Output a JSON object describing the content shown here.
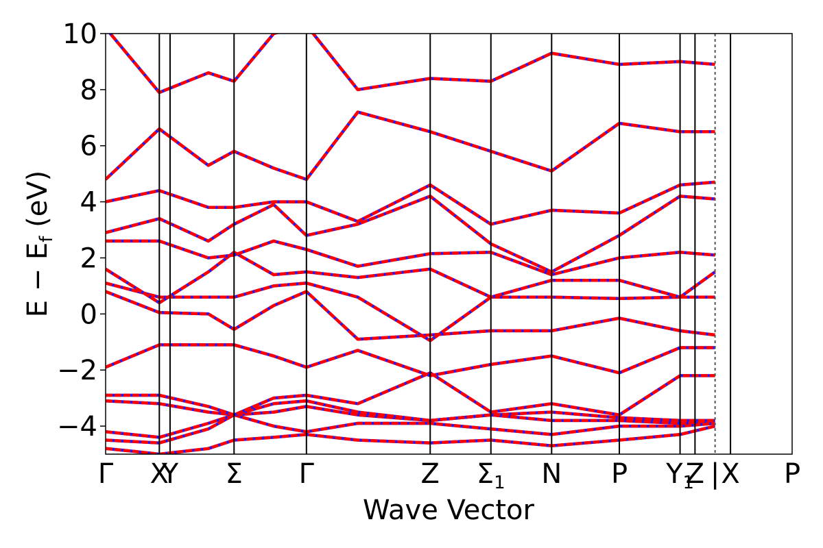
{
  "chart_data": {
    "type": "line",
    "title": "",
    "xlabel": "Wave Vector",
    "ylabel": "E − E",
    "ylabel_sub": "f",
    "ylabel_unit": "(eV)",
    "ylim": [
      -5,
      10
    ],
    "yticks": [
      -4,
      -2,
      0,
      2,
      4,
      6,
      8,
      10
    ],
    "ytick_labels": [
      "−4",
      "−2",
      "0",
      "2",
      "4",
      "6",
      "8",
      "10"
    ],
    "xlim": [
      0,
      13.2
    ],
    "high_symmetry_points": [
      {
        "label": "Γ",
        "sub": "",
        "x": 0.0
      },
      {
        "label": "X",
        "sub": "",
        "x": 1.15
      },
      {
        "label": "Y",
        "sub": "",
        "x": 1.38
      },
      {
        "label": "Σ",
        "sub": "",
        "x": 2.75
      },
      {
        "label": "Γ",
        "sub": "",
        "x": 4.3
      },
      {
        "label": "Z",
        "sub": "",
        "x": 6.95
      },
      {
        "label": "Σ",
        "sub": "1",
        "x": 8.25
      },
      {
        "label": "N",
        "sub": "",
        "x": 9.55
      },
      {
        "label": "P",
        "sub": "",
        "x": 11.0
      },
      {
        "label": "Y",
        "sub": "1",
        "x": 12.3
      },
      {
        "label": "Z",
        "sub": "",
        "x": 12.62
      },
      {
        "label": "|",
        "sub": "",
        "x": 13.05
      },
      {
        "label": "X",
        "sub": "",
        "x": 13.38
      },
      {
        "label": "P",
        "sub": "",
        "x": 14.7
      }
    ],
    "path_break_x": 13.05,
    "grid": false,
    "legend": "none",
    "line_styles": {
      "solid_color": "#ff0000",
      "dashed_color": "#1a1aff"
    },
    "series": [
      {
        "values": [
          [
            0,
            -4.8
          ],
          [
            0.6,
            -4.9
          ],
          [
            1.15,
            -5.0
          ],
          [
            2.2,
            -4.8
          ],
          [
            2.75,
            -4.5
          ],
          [
            3.6,
            -4.4
          ],
          [
            4.3,
            -4.3
          ],
          [
            5.4,
            -4.5
          ],
          [
            6.95,
            -4.6
          ],
          [
            8.25,
            -4.5
          ],
          [
            9.55,
            -4.7
          ],
          [
            11.0,
            -4.5
          ],
          [
            12.3,
            -4.3
          ],
          [
            13.05,
            -4.0
          ]
        ]
      },
      {
        "values": [
          [
            0,
            -4.5
          ],
          [
            1.15,
            -4.6
          ],
          [
            2.2,
            -4.1
          ],
          [
            2.75,
            -3.6
          ],
          [
            3.6,
            -4.0
          ],
          [
            4.3,
            -4.2
          ],
          [
            5.4,
            -3.9
          ],
          [
            6.95,
            -3.9
          ],
          [
            8.25,
            -4.1
          ],
          [
            9.55,
            -4.3
          ],
          [
            11.0,
            -4.0
          ],
          [
            12.3,
            -4.0
          ],
          [
            13.05,
            -3.9
          ]
        ]
      },
      {
        "values": [
          [
            0,
            -4.2
          ],
          [
            1.15,
            -4.4
          ],
          [
            2.2,
            -3.9
          ],
          [
            2.75,
            -3.6
          ],
          [
            3.6,
            -3.5
          ],
          [
            4.3,
            -3.3
          ],
          [
            5.4,
            -3.6
          ],
          [
            6.95,
            -3.8
          ],
          [
            8.25,
            -3.6
          ],
          [
            9.55,
            -3.8
          ],
          [
            11.0,
            -3.8
          ],
          [
            12.3,
            -3.9
          ],
          [
            13.05,
            -3.8
          ]
        ]
      },
      {
        "values": [
          [
            0,
            -3.1
          ],
          [
            1.15,
            -3.2
          ],
          [
            2.2,
            -3.5
          ],
          [
            2.75,
            -3.6
          ],
          [
            3.6,
            -3.2
          ],
          [
            4.3,
            -3.1
          ],
          [
            5.4,
            -3.5
          ],
          [
            6.95,
            -3.8
          ],
          [
            8.25,
            -3.6
          ],
          [
            9.55,
            -3.5
          ],
          [
            11.0,
            -3.7
          ],
          [
            12.3,
            -3.8
          ],
          [
            13.05,
            -3.8
          ]
        ]
      },
      {
        "values": [
          [
            0,
            -2.9
          ],
          [
            1.15,
            -2.9
          ],
          [
            2.2,
            -3.3
          ],
          [
            2.75,
            -3.6
          ],
          [
            3.6,
            -3.0
          ],
          [
            4.3,
            -2.9
          ],
          [
            5.4,
            -3.2
          ],
          [
            6.95,
            -2.1
          ],
          [
            8.25,
            -3.5
          ],
          [
            9.55,
            -3.2
          ],
          [
            11.0,
            -3.6
          ],
          [
            12.3,
            -2.2
          ],
          [
            13.05,
            -2.2
          ]
        ]
      },
      {
        "values": [
          [
            0,
            -1.9
          ],
          [
            1.15,
            -1.1
          ],
          [
            2.2,
            -1.1
          ],
          [
            2.75,
            -1.1
          ],
          [
            3.6,
            -1.5
          ],
          [
            4.3,
            -1.9
          ],
          [
            5.4,
            -1.3
          ],
          [
            6.95,
            -2.2
          ],
          [
            8.25,
            -1.8
          ],
          [
            9.55,
            -1.5
          ],
          [
            11.0,
            -2.1
          ],
          [
            12.3,
            -1.2
          ],
          [
            13.05,
            -1.2
          ]
        ]
      },
      {
        "values": [
          [
            0,
            0.8
          ],
          [
            1.15,
            0.05
          ],
          [
            2.2,
            0.0
          ],
          [
            2.75,
            -0.55
          ],
          [
            3.6,
            0.3
          ],
          [
            4.3,
            0.8
          ],
          [
            5.4,
            -0.9
          ],
          [
            6.95,
            -0.75
          ],
          [
            8.25,
            -0.6
          ],
          [
            9.55,
            -0.6
          ],
          [
            11.0,
            -0.15
          ],
          [
            12.3,
            -0.6
          ],
          [
            13.05,
            -0.75
          ]
        ]
      },
      {
        "values": [
          [
            0,
            1.1
          ],
          [
            1.15,
            0.6
          ],
          [
            2.2,
            0.6
          ],
          [
            2.75,
            0.6
          ],
          [
            3.6,
            1.0
          ],
          [
            4.3,
            1.1
          ],
          [
            5.4,
            0.6
          ],
          [
            6.95,
            -0.95
          ],
          [
            8.25,
            0.6
          ],
          [
            9.55,
            0.6
          ],
          [
            11.0,
            0.55
          ],
          [
            12.3,
            0.6
          ],
          [
            13.05,
            0.6
          ]
        ]
      },
      {
        "values": [
          [
            0,
            1.6
          ],
          [
            1.15,
            0.4
          ],
          [
            2.2,
            1.5
          ],
          [
            2.75,
            2.2
          ],
          [
            3.6,
            1.4
          ],
          [
            4.3,
            1.5
          ],
          [
            5.4,
            1.3
          ],
          [
            6.95,
            1.6
          ],
          [
            8.25,
            0.6
          ],
          [
            9.55,
            1.2
          ],
          [
            11.0,
            1.2
          ],
          [
            12.3,
            0.6
          ],
          [
            13.05,
            1.5
          ]
        ]
      },
      {
        "values": [
          [
            0,
            2.6
          ],
          [
            1.15,
            2.6
          ],
          [
            2.2,
            2.0
          ],
          [
            2.75,
            2.1
          ],
          [
            3.6,
            2.6
          ],
          [
            4.3,
            2.3
          ],
          [
            5.4,
            1.7
          ],
          [
            6.95,
            2.15
          ],
          [
            8.25,
            2.2
          ],
          [
            9.55,
            1.4
          ],
          [
            11.0,
            2.0
          ],
          [
            12.3,
            2.2
          ],
          [
            13.05,
            2.1
          ]
        ]
      },
      {
        "values": [
          [
            0,
            2.9
          ],
          [
            1.15,
            3.4
          ],
          [
            2.2,
            2.6
          ],
          [
            2.75,
            3.2
          ],
          [
            3.6,
            3.9
          ],
          [
            4.3,
            2.8
          ],
          [
            5.4,
            3.2
          ],
          [
            6.95,
            4.2
          ],
          [
            8.25,
            2.5
          ],
          [
            9.55,
            1.5
          ],
          [
            11.0,
            2.8
          ],
          [
            12.3,
            4.2
          ],
          [
            13.05,
            4.1
          ]
        ]
      },
      {
        "values": [
          [
            0,
            4.0
          ],
          [
            1.15,
            4.4
          ],
          [
            2.2,
            3.8
          ],
          [
            2.75,
            3.8
          ],
          [
            3.6,
            4.0
          ],
          [
            4.3,
            4.0
          ],
          [
            5.4,
            3.3
          ],
          [
            6.95,
            4.6
          ],
          [
            8.25,
            3.2
          ],
          [
            9.55,
            3.7
          ],
          [
            11.0,
            3.6
          ],
          [
            12.3,
            4.6
          ],
          [
            13.05,
            4.7
          ]
        ]
      },
      {
        "values": [
          [
            0,
            4.8
          ],
          [
            1.15,
            6.6
          ],
          [
            2.2,
            5.3
          ],
          [
            2.75,
            5.8
          ],
          [
            3.6,
            5.2
          ],
          [
            4.3,
            4.8
          ],
          [
            5.4,
            7.2
          ],
          [
            6.95,
            6.5
          ],
          [
            8.25,
            5.8
          ],
          [
            9.55,
            5.1
          ],
          [
            11.0,
            6.8
          ],
          [
            12.3,
            6.5
          ],
          [
            13.05,
            6.5
          ]
        ]
      },
      {
        "values": [
          [
            0,
            10.2
          ],
          [
            1.15,
            7.9
          ],
          [
            2.2,
            8.6
          ],
          [
            2.75,
            8.3
          ],
          [
            3.6,
            10.0
          ],
          [
            4.3,
            10.3
          ],
          [
            5.4,
            8.0
          ],
          [
            6.95,
            8.4
          ],
          [
            8.25,
            8.3
          ],
          [
            9.55,
            9.3
          ],
          [
            11.0,
            8.9
          ],
          [
            12.3,
            9.0
          ],
          [
            13.05,
            8.9
          ]
        ]
      }
    ]
  }
}
